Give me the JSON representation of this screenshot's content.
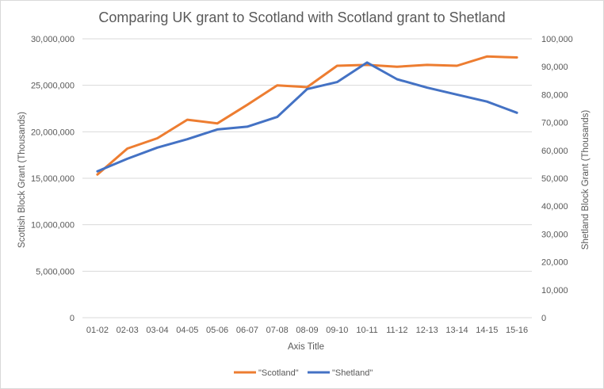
{
  "chart_data": {
    "type": "line",
    "title": "Comparing UK grant to Scotland with Scotland grant to Shetland",
    "xlabel": "Axis Title",
    "ylabel_left": "Scottish Block Grant (Thousands)",
    "ylabel_right": "Shetland Block Grant (Thousands)",
    "categories": [
      "01-02",
      "02-03",
      "03-04",
      "04-05",
      "05-06",
      "06-07",
      "07-08",
      "08-09",
      "09-10",
      "10-11",
      "11-12",
      "12-13",
      "13-14",
      "14-15",
      "15-16"
    ],
    "ylim_left": [
      0,
      30000000
    ],
    "ylim_right": [
      0,
      100000
    ],
    "yticks_left": [
      "0",
      "5,000,000",
      "10,000,000",
      "15,000,000",
      "20,000,000",
      "25,000,000",
      "30,000,000"
    ],
    "yticks_right": [
      "0",
      "10,000",
      "20,000",
      "30,000",
      "40,000",
      "50,000",
      "60,000",
      "70,000",
      "80,000",
      "90,000",
      "100,000"
    ],
    "grid": true,
    "legend_position": "bottom",
    "series": [
      {
        "name": "\"Scotland\"",
        "axis": "left",
        "color": "#ED7D31",
        "values": [
          15400000,
          18200000,
          19300000,
          21300000,
          20900000,
          22900000,
          25000000,
          24800000,
          27100000,
          27200000,
          27000000,
          27200000,
          27100000,
          28100000,
          28000000
        ]
      },
      {
        "name": "\"Shetland\"",
        "axis": "right",
        "color": "#4472C4",
        "values": [
          52500,
          57000,
          61000,
          64000,
          67500,
          68500,
          72000,
          82000,
          84500,
          91500,
          85500,
          82500,
          80000,
          77500,
          73500
        ]
      }
    ]
  }
}
